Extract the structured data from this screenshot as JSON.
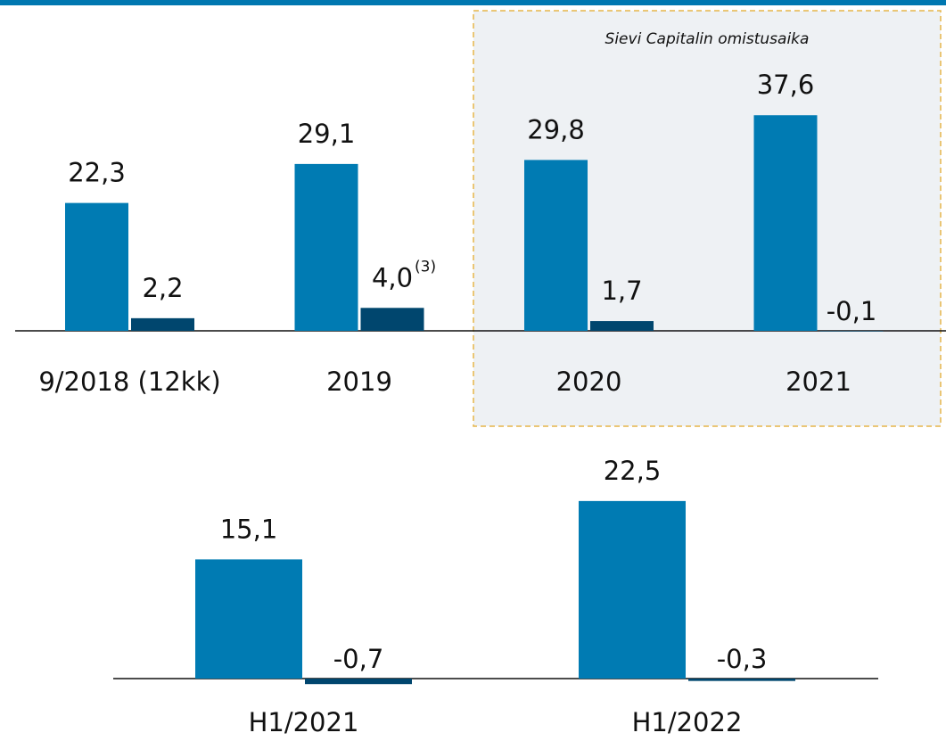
{
  "chart_data": [
    {
      "type": "bar",
      "categories": [
        "9/2018 (12kk)",
        "2019",
        "2020",
        "2021"
      ],
      "series": [
        {
          "color": "#007bb3",
          "values": [
            22.3,
            29.1,
            29.8,
            37.6
          ],
          "value_labels": [
            "22,3",
            "29,1",
            "29,8",
            "37,6"
          ]
        },
        {
          "color": "#00466e",
          "values": [
            2.2,
            4.0,
            1.7,
            -0.1
          ],
          "value_labels": [
            "2,2",
            "4,0",
            "1,7",
            "-0,1"
          ]
        }
      ],
      "annotations": [
        "Sievi Capitalin omistusaika",
        "(3)"
      ]
    },
    {
      "type": "bar",
      "categories": [
        "H1/2021",
        "H1/2022"
      ],
      "series": [
        {
          "color": "#007bb3",
          "values": [
            15.1,
            22.5
          ],
          "value_labels": [
            "15,1",
            "22,5"
          ]
        },
        {
          "color": "#00466e",
          "values": [
            -0.7,
            -0.3
          ],
          "value_labels": [
            "-0,7",
            "-0,3"
          ]
        }
      ]
    }
  ]
}
